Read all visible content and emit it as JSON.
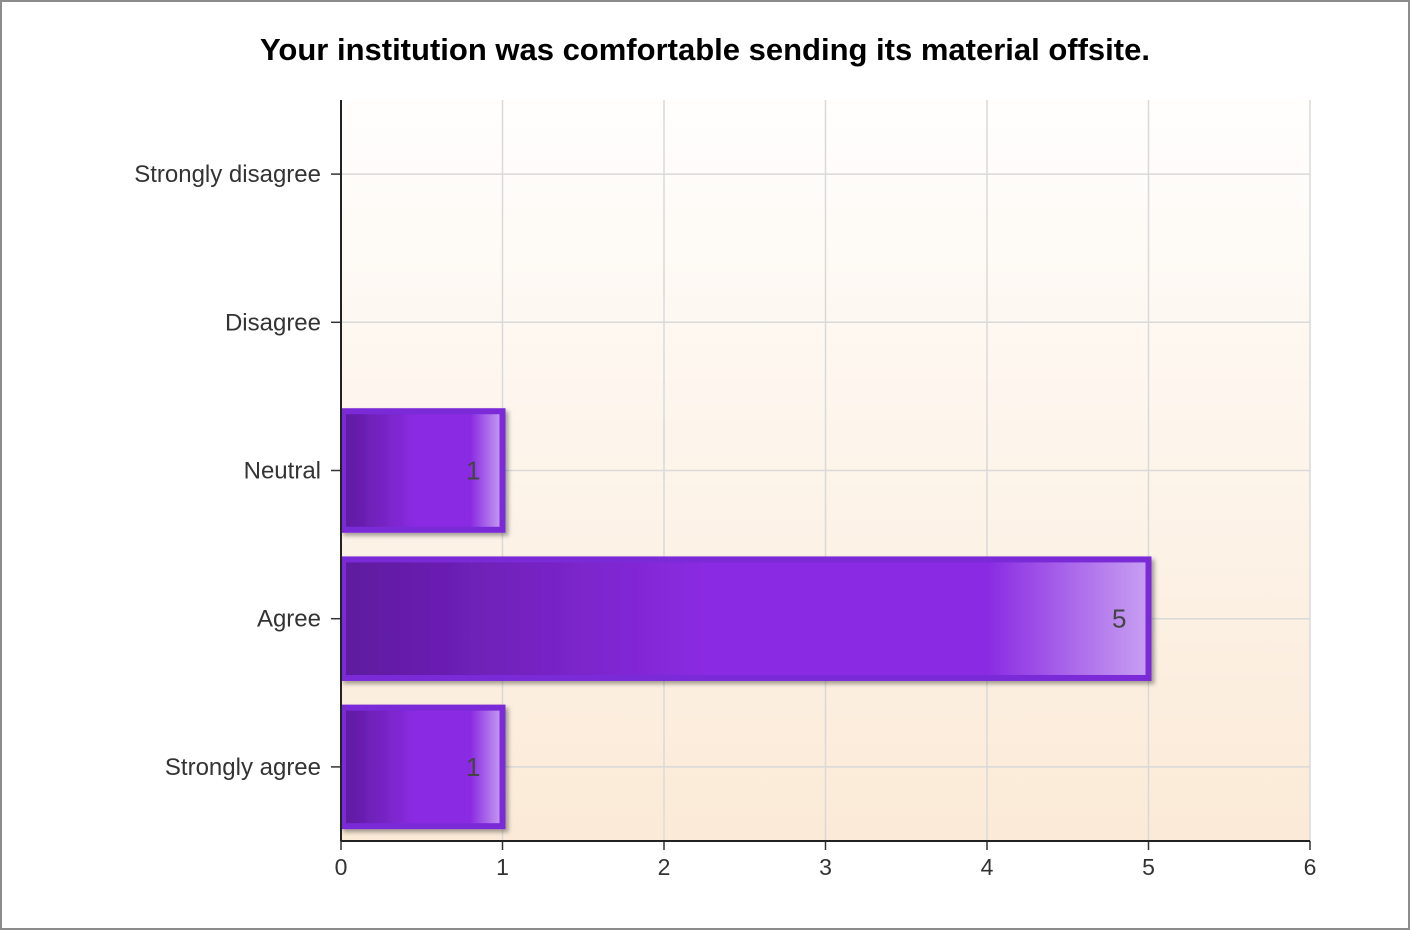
{
  "chart_data": {
    "type": "bar",
    "orientation": "horizontal",
    "title": "Your institution was comfortable sending its material offsite.",
    "categories": [
      "Strongly disagree",
      "Disagree",
      "Neutral",
      "Agree",
      "Strongly agree"
    ],
    "values": [
      0,
      0,
      1,
      5,
      1
    ],
    "data_labels": [
      "",
      "",
      "1",
      "5",
      "1"
    ],
    "xlim": [
      0,
      6
    ],
    "x_ticks": [
      "0",
      "1",
      "2",
      "3",
      "4",
      "5",
      "6"
    ],
    "xlabel": "",
    "ylabel": "",
    "grid": true,
    "legend": "none",
    "colors": {
      "bar_dark": "#5e1a9e",
      "bar_mid": "#8a2be2",
      "bar_light": "#c8a0f2",
      "bar_border": "#7a2bd6",
      "plot_bg_top": "#fffefd",
      "plot_bg_bottom": "#fbead7"
    }
  }
}
